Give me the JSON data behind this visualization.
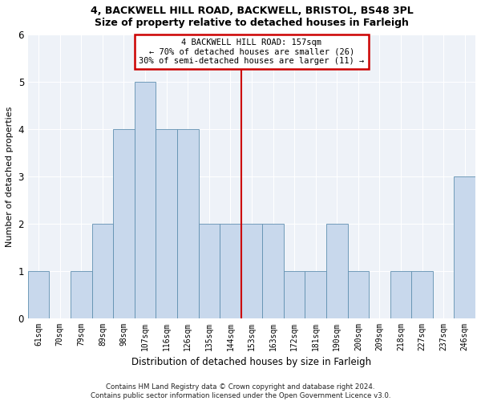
{
  "title_line1": "4, BACKWELL HILL ROAD, BACKWELL, BRISTOL, BS48 3PL",
  "title_line2": "Size of property relative to detached houses in Farleigh",
  "xlabel": "Distribution of detached houses by size in Farleigh",
  "ylabel": "Number of detached properties",
  "footer": "Contains HM Land Registry data © Crown copyright and database right 2024.\nContains public sector information licensed under the Open Government Licence v3.0.",
  "bin_labels": [
    "61sqm",
    "70sqm",
    "79sqm",
    "89sqm",
    "98sqm",
    "107sqm",
    "116sqm",
    "126sqm",
    "135sqm",
    "144sqm",
    "153sqm",
    "163sqm",
    "172sqm",
    "181sqm",
    "190sqm",
    "200sqm",
    "209sqm",
    "218sqm",
    "227sqm",
    "237sqm",
    "246sqm"
  ],
  "bar_heights": [
    1,
    0,
    1,
    2,
    4,
    5,
    4,
    4,
    2,
    2,
    2,
    2,
    1,
    1,
    2,
    1,
    0,
    1,
    1,
    0,
    3
  ],
  "bar_color": "#c8d8ec",
  "bar_edgecolor": "#6090b0",
  "annotation_line1": "4 BACKWELL HILL ROAD: 157sqm",
  "annotation_line2": "← 70% of detached houses are smaller (26)",
  "annotation_line3": "30% of semi-detached houses are larger (11) →",
  "vline_color": "#cc0000",
  "annotation_box_edgecolor": "#cc0000",
  "background_color": "#eef2f8",
  "grid_color": "#ffffff",
  "ylim": [
    0,
    6
  ],
  "vline_x": 9.5
}
